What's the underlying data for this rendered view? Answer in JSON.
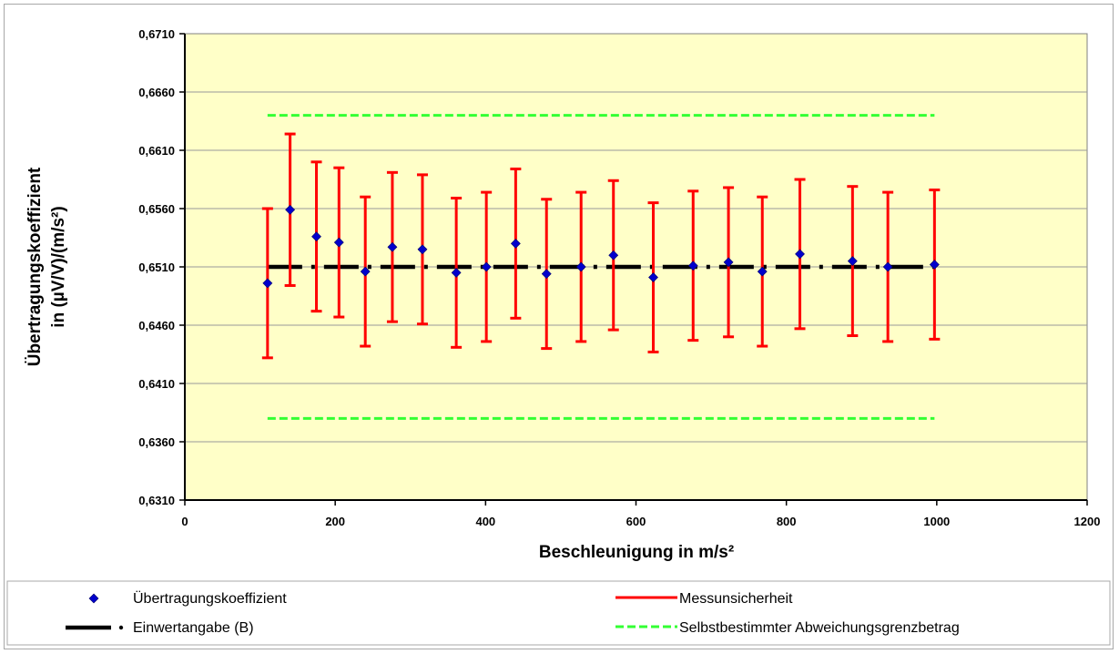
{
  "chart_data": {
    "type": "scatter",
    "xlabel": "Beschleunigung in m/s²",
    "ylabel": [
      "Übertragungskoeffizient",
      "in (µV/V)/(m/s²)"
    ],
    "xlim": [
      0,
      1200
    ],
    "ylim": [
      0.631,
      0.671
    ],
    "x_ticks": [
      "0",
      "200",
      "400",
      "600",
      "800",
      "1000",
      "1200"
    ],
    "x_tick_values": [
      0,
      200,
      400,
      600,
      800,
      1000,
      1200
    ],
    "y_ticks": [
      "0,6310",
      "0,6360",
      "0,6410",
      "0,6460",
      "0,6510",
      "0,6560",
      "0,6610",
      "0,6660",
      "0,6710"
    ],
    "y_tick_values": [
      0.631,
      0.636,
      0.641,
      0.646,
      0.651,
      0.656,
      0.661,
      0.666,
      0.671
    ],
    "grid": "horizontal",
    "plot_background": "#FFFFC8",
    "series": [
      {
        "name": "Übertragungskoeffizient",
        "kind": "points",
        "color": "#0000CC",
        "marker": "diamond",
        "x": [
          110,
          140,
          175,
          205,
          240,
          276,
          316,
          361,
          401,
          440,
          481,
          527,
          570,
          623,
          676,
          723,
          768,
          818,
          888,
          935,
          997
        ],
        "y": [
          0.6496,
          0.6559,
          0.6536,
          0.6531,
          0.6506,
          0.6527,
          0.6525,
          0.6505,
          0.651,
          0.653,
          0.6504,
          0.651,
          0.652,
          0.6501,
          0.6511,
          0.6514,
          0.6506,
          0.6521,
          0.6515,
          0.651,
          0.6512
        ]
      },
      {
        "name": "Messunsicherheit",
        "kind": "error_bars",
        "color": "#FF0000",
        "lower": [
          0.6432,
          0.6494,
          0.6472,
          0.6467,
          0.6442,
          0.6463,
          0.6461,
          0.6441,
          0.6446,
          0.6466,
          0.644,
          0.6446,
          0.6456,
          0.6437,
          0.6447,
          0.645,
          0.6442,
          0.6457,
          0.6451,
          0.6446,
          0.6448
        ],
        "upper": [
          0.656,
          0.6624,
          0.66,
          0.6595,
          0.657,
          0.6591,
          0.6589,
          0.6569,
          0.6574,
          0.6594,
          0.6568,
          0.6574,
          0.6584,
          0.6565,
          0.6575,
          0.6578,
          0.657,
          0.6585,
          0.6579,
          0.6574,
          0.6576
        ]
      },
      {
        "name": "Einwertangabe (B)",
        "kind": "dash_dot_line",
        "color": "#000000",
        "x": [
          110,
          997
        ],
        "y": [
          0.651,
          0.651
        ]
      },
      {
        "name": "Selbstbestimmter Abweichungsgrenzbetrag",
        "kind": "dashed_lines",
        "color": "#33FF33",
        "x": [
          110,
          997
        ],
        "y_upper": 0.664,
        "y_lower": 0.638
      }
    ]
  }
}
